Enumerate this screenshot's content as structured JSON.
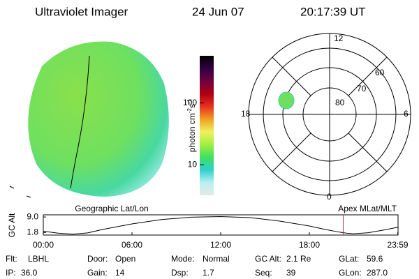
{
  "header": {
    "instrument": "Ultraviolet Imager",
    "date": "24 Jun 07",
    "time": "20:17:39 UT"
  },
  "colorbar": {
    "label": {
      "base": "photon cm",
      "exp1": "-2",
      "unit2": "s",
      "exp2": "-1"
    },
    "log": true,
    "ylim": [
      3.2,
      580
    ],
    "yticks": [
      10,
      100
    ],
    "colors": [
      "#e8e8e8",
      "#b8f0f0",
      "#30d0d0",
      "#40e060",
      "#a0f040",
      "#f0f060",
      "#f0a020",
      "#e83020",
      "#b00010",
      "#700040",
      "#300040",
      "#000000"
    ]
  },
  "polar": {
    "mlt_labels": {
      "top": "12",
      "right": "6",
      "bottom": "0",
      "left": "18"
    },
    "lat_labels": [
      "80",
      "70",
      "60"
    ]
  },
  "orbit": {
    "title_left": "Geographic Lat/Lon",
    "title_right": "Apex MLat/MLT",
    "ylabel": "GC Alt",
    "ylim": [
      0.6,
      10.0
    ],
    "yticks": [
      {
        "value": 9.0,
        "label": "9.0"
      },
      {
        "value": 1.8,
        "label": "1.8"
      }
    ],
    "xlim": [
      0,
      24
    ],
    "xticks": [
      {
        "value": 0,
        "label": "00:00"
      },
      {
        "value": 6,
        "label": "06:00"
      },
      {
        "value": 12,
        "label": "12:00"
      },
      {
        "value": 18,
        "label": "18:00"
      },
      {
        "value": 23.98,
        "label": "23:59"
      }
    ],
    "x": [
      0,
      1,
      2,
      3,
      4,
      6,
      8,
      10,
      12,
      14,
      16,
      18,
      19,
      20,
      20.5,
      21,
      22,
      23,
      23.98
    ],
    "values": [
      2.4,
      1.5,
      1.0,
      1.6,
      3.2,
      5.8,
      7.8,
      8.9,
      9.2,
      8.7,
      7.1,
      4.8,
      3.3,
      2.0,
      1.5,
      1.2,
      1.7,
      2.9,
      4.2
    ],
    "current_time": 20.29,
    "marker_color": "#c0305a",
    "line_color": "#000000"
  },
  "info": [
    [
      [
        "Flt:",
        "LBHL"
      ],
      [
        "Door:",
        "Open"
      ],
      [
        "Mode:",
        "Normal"
      ],
      [
        "GC Alt:",
        "2.1 Re"
      ],
      [
        "GLat:",
        "59.6"
      ]
    ],
    [
      [
        "IP:",
        "36.0"
      ],
      [
        "Gain:",
        "14"
      ],
      [
        "Dsp:",
        "1.7"
      ],
      [
        "Seq:",
        "39"
      ],
      [
        "GLon:",
        "287.0"
      ]
    ]
  ]
}
